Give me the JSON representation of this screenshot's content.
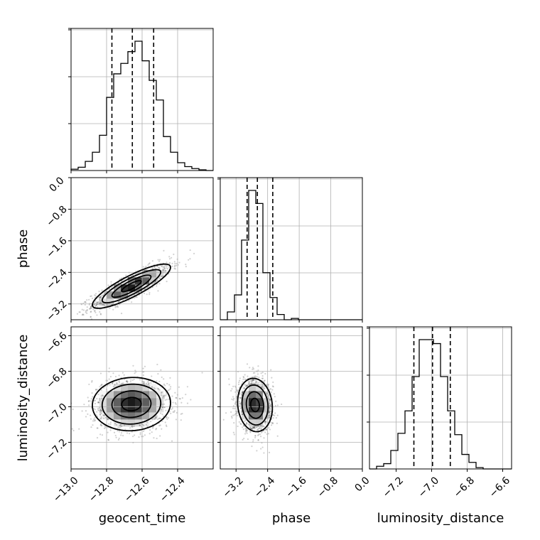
{
  "chart_data": {
    "type": "corner",
    "grid": true,
    "parameters": [
      {
        "name": "geocent_time",
        "label": "geocent_time",
        "range": [
          -13.0,
          -12.2
        ],
        "ticks": [
          -13.0,
          -12.8,
          -12.6,
          -12.4
        ],
        "tick_labels": [
          "−13.0",
          "−12.8",
          "−12.6",
          "−12.4"
        ],
        "quantiles": [
          -12.77,
          -12.655,
          -12.535
        ],
        "hist_edges_start": -13.0,
        "hist_bin_width": 0.04,
        "hist_counts": [
          0.01,
          0.025,
          0.07,
          0.14,
          0.27,
          0.56,
          0.74,
          0.82,
          0.91,
          0.99,
          0.84,
          0.69,
          0.54,
          0.26,
          0.14,
          0.06,
          0.03,
          0.015,
          0.005,
          0.0
        ]
      },
      {
        "name": "phase",
        "label": "phase",
        "range": [
          -3.6,
          0.0
        ],
        "ticks": [
          -3.2,
          -2.4,
          -1.6,
          -0.8,
          0.0
        ],
        "tick_labels": [
          "−3.2",
          "−2.4",
          "−1.6",
          "−0.8",
          "0.0"
        ],
        "quantiles": [
          -2.92,
          -2.66,
          -2.27
        ],
        "hist_edges_start": -3.6,
        "hist_bin_width": 0.18,
        "hist_counts": [
          0.0,
          0.06,
          0.19,
          0.61,
          0.99,
          0.89,
          0.36,
          0.17,
          0.04,
          0.0,
          0.01,
          0.0,
          0.0,
          0.0,
          0.0,
          0.0,
          0.0,
          0.0,
          0.0,
          0.0
        ]
      },
      {
        "name": "luminosity_distance",
        "label": "luminosity_distance",
        "range": [
          -7.35,
          -6.55
        ],
        "ticks": [
          -7.2,
          -7.0,
          -6.8,
          -6.6
        ],
        "tick_labels": [
          "−7.2",
          "−7.0",
          "−6.8",
          "−6.6"
        ],
        "quantiles": [
          -7.1,
          -6.995,
          -6.895
        ],
        "hist_edges_start": -7.35,
        "hist_bin_width": 0.04,
        "hist_counts": [
          0.0,
          0.02,
          0.04,
          0.14,
          0.27,
          0.44,
          0.7,
          0.98,
          0.98,
          0.95,
          0.7,
          0.44,
          0.26,
          0.11,
          0.05,
          0.01,
          0.0,
          0.0,
          0.0,
          0.0
        ]
      }
    ],
    "pairs": [
      {
        "x": "geocent_time",
        "y": "phase",
        "mean": [
          -12.66,
          -2.75
        ],
        "std": [
          0.11,
          0.28
        ],
        "correlation": 0.85
      },
      {
        "x": "geocent_time",
        "y": "luminosity_distance",
        "mean": [
          -12.66,
          -6.985
        ],
        "std": [
          0.11,
          0.075
        ],
        "correlation": 0.05
      },
      {
        "x": "phase",
        "y": "luminosity_distance",
        "mean": [
          -2.72,
          -6.99
        ],
        "std": [
          0.22,
          0.075
        ],
        "correlation": -0.1
      }
    ],
    "contour_levels": [
      0.118,
      0.393,
      0.675,
      0.865
    ]
  }
}
